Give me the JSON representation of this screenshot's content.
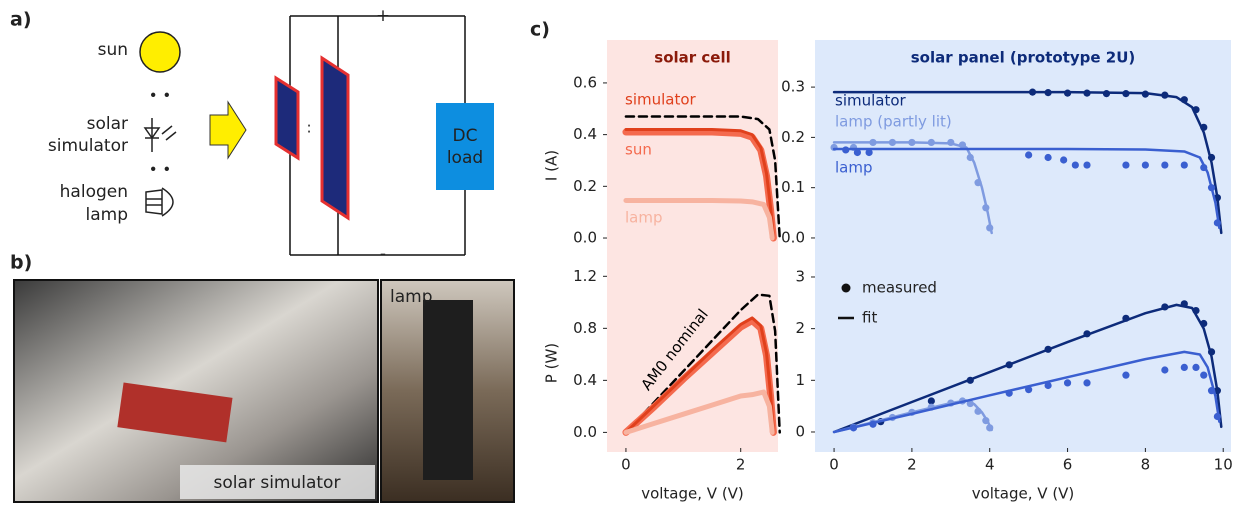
{
  "panel_a": {
    "label": "a)",
    "sources": [
      [
        "sun"
      ],
      [
        "solar",
        "simulator"
      ],
      [
        "halogen",
        "lamp"
      ]
    ],
    "plus": "+",
    "minus": "-",
    "load": [
      "DC",
      "load"
    ]
  },
  "panel_b": {
    "label": "b)",
    "photo_left": "solar simulator",
    "photo_right": "lamp"
  },
  "panel_c": {
    "label": "c)"
  },
  "chart_data": [
    {
      "type": "line",
      "title": "solar cell",
      "title_color": "#8b1a0a",
      "ylabel": "I (A)",
      "background": "#fde5e2",
      "xlim": [
        -0.33,
        2.65
      ],
      "ylim": [
        -0.027,
        0.65
      ],
      "yticks": [
        {
          "value": 0,
          "label": "0.0"
        },
        {
          "value": 0.2,
          "label": "0.2"
        },
        {
          "value": 0.4,
          "label": "0.4"
        },
        {
          "value": 0.6,
          "label": "0.6"
        }
      ],
      "series": [
        {
          "color": "#000000",
          "dash": true,
          "width": 2.5,
          "x": [
            0,
            1,
            2,
            2.3,
            2.5,
            2.6,
            2.68
          ],
          "values": [
            0.47,
            0.47,
            0.47,
            0.46,
            0.42,
            0.3,
            0
          ]
        },
        {
          "name": "sun",
          "color": "#f46a4e",
          "width": 7,
          "x": [
            0,
            0.5,
            1,
            1.5,
            2,
            2.2,
            2.35,
            2.45,
            2.52,
            2.57
          ],
          "values": [
            0.41,
            0.41,
            0.41,
            0.41,
            0.405,
            0.39,
            0.34,
            0.24,
            0.11,
            0
          ]
        },
        {
          "name": "simulator",
          "color": "#e0401c",
          "width": 3,
          "x": [
            0,
            0.5,
            1,
            1.5,
            2,
            2.2,
            2.35,
            2.45,
            2.52,
            2.57
          ],
          "values": [
            0.42,
            0.42,
            0.42,
            0.42,
            0.415,
            0.4,
            0.35,
            0.25,
            0.12,
            0
          ]
        },
        {
          "name": "lamp",
          "color": "#f7b3a0",
          "width": 5,
          "x": [
            0,
            0.5,
            1,
            1.5,
            2,
            2.2,
            2.4,
            2.5,
            2.55
          ],
          "values": [
            0.145,
            0.145,
            0.145,
            0.145,
            0.143,
            0.14,
            0.13,
            0.08,
            0
          ]
        }
      ]
    },
    {
      "type": "line",
      "xlabel": "voltage, V (V)",
      "ylabel": "P (W)",
      "background": "#fde5e2",
      "xlim": [
        -0.33,
        2.65
      ],
      "ylim": [
        -0.12,
        1.31
      ],
      "xticks": [
        0,
        2
      ],
      "yticks": [
        {
          "value": 0,
          "label": "0.0"
        },
        {
          "value": 0.4,
          "label": "0.4"
        },
        {
          "value": 0.8,
          "label": "0.8"
        },
        {
          "value": 1.2,
          "label": "1.2"
        }
      ],
      "series": [
        {
          "name": "AM0 nominal",
          "color": "#000000",
          "dash": true,
          "width": 2.5,
          "x": [
            0,
            1,
            2,
            2.3,
            2.5,
            2.6,
            2.68
          ],
          "values": [
            0,
            0.47,
            0.94,
            1.06,
            1.05,
            0.78,
            0
          ]
        },
        {
          "color": "#f46a4e",
          "width": 7,
          "x": [
            0,
            0.5,
            1,
            1.5,
            2,
            2.2,
            2.35,
            2.45,
            2.52,
            2.57
          ],
          "values": [
            0,
            0.2,
            0.41,
            0.61,
            0.81,
            0.86,
            0.8,
            0.59,
            0.28,
            0
          ]
        },
        {
          "color": "#e0401c",
          "width": 3,
          "x": [
            0,
            0.5,
            1,
            1.5,
            2,
            2.2,
            2.35,
            2.45,
            2.52,
            2.57
          ],
          "values": [
            0,
            0.21,
            0.42,
            0.63,
            0.83,
            0.88,
            0.82,
            0.61,
            0.3,
            0
          ]
        },
        {
          "color": "#f7b3a0",
          "width": 5,
          "x": [
            0,
            0.5,
            1,
            1.5,
            2,
            2.2,
            2.4,
            2.5,
            2.55
          ],
          "values": [
            0,
            0.07,
            0.14,
            0.21,
            0.28,
            0.29,
            0.31,
            0.2,
            0
          ]
        }
      ]
    },
    {
      "type": "line",
      "title": "solar panel (prototype 2U)",
      "title_color": "#0d2b7a",
      "background": "#dde9fb",
      "xlim": [
        -0.49,
        10.2
      ],
      "ylim": [
        -0.014,
        0.334
      ],
      "yticks": [
        {
          "value": 0,
          "label": "0.0"
        },
        {
          "value": 0.1,
          "label": "0.1"
        },
        {
          "value": 0.2,
          "label": "0.2"
        },
        {
          "value": 0.3,
          "label": "0.3"
        }
      ],
      "series": [
        {
          "name": "simulator",
          "color": "#0d2b7a",
          "width": 2.5,
          "x": [
            0,
            2,
            4,
            6,
            8,
            8.8,
            9.2,
            9.5,
            9.7,
            9.85,
            9.95
          ],
          "values": [
            0.29,
            0.29,
            0.29,
            0.29,
            0.288,
            0.28,
            0.26,
            0.21,
            0.15,
            0.08,
            0.01
          ],
          "points": {
            "x": [
              5.1,
              5.5,
              6,
              6.5,
              7,
              7.5,
              8,
              8.5,
              9,
              9.3,
              9.5,
              9.7,
              9.85
            ],
            "values": [
              0.29,
              0.289,
              0.288,
              0.288,
              0.287,
              0.287,
              0.286,
              0.284,
              0.275,
              0.255,
              0.22,
              0.16,
              0.08
            ]
          }
        },
        {
          "name": "lamp (partly lit)",
          "color": "#7f9be0",
          "width": 2.5,
          "x": [
            0,
            1,
            2,
            3,
            3.4,
            3.6,
            3.8,
            3.95,
            4.05
          ],
          "values": [
            0.19,
            0.19,
            0.19,
            0.188,
            0.18,
            0.15,
            0.1,
            0.05,
            0.01
          ],
          "points": {
            "x": [
              0,
              0.5,
              1,
              1.5,
              2,
              2.5,
              3,
              3.3,
              3.5,
              3.7,
              3.9,
              4
            ],
            "values": [
              0.18,
              0.18,
              0.19,
              0.19,
              0.19,
              0.19,
              0.19,
              0.185,
              0.16,
              0.11,
              0.06,
              0.02
            ]
          }
        },
        {
          "name": "lamp",
          "color": "#3a5fd0",
          "width": 2.5,
          "x": [
            0,
            2,
            4,
            6,
            8,
            9,
            9.4,
            9.6,
            9.8,
            9.9
          ],
          "values": [
            0.177,
            0.177,
            0.177,
            0.177,
            0.176,
            0.172,
            0.16,
            0.13,
            0.07,
            0.02
          ],
          "points": {
            "x": [
              0.3,
              0.6,
              0.9,
              5,
              5.5,
              5.9,
              6.2,
              6.5,
              7.5,
              8,
              8.5,
              9,
              9.5,
              9.7,
              9.85
            ],
            "values": [
              0.175,
              0.17,
              0.17,
              0.165,
              0.16,
              0.155,
              0.145,
              0.145,
              0.145,
              0.145,
              0.145,
              0.145,
              0.14,
              0.1,
              0.03
            ]
          }
        }
      ]
    },
    {
      "type": "line",
      "xlabel": "voltage, V (V)",
      "background": "#dde9fb",
      "legend": [
        "measured",
        "fit"
      ],
      "legend_corner": "upper left",
      "xlim": [
        -0.49,
        10.2
      ],
      "ylim": [
        -0.31,
        3.29
      ],
      "xticks": [
        0,
        2,
        4,
        6,
        8,
        10
      ],
      "yticks": [
        0,
        1,
        2,
        3
      ],
      "series": [
        {
          "color": "#0d2b7a",
          "width": 2.5,
          "x": [
            0,
            2,
            4,
            6,
            8,
            8.8,
            9.2,
            9.5,
            9.7,
            9.85,
            9.95
          ],
          "values": [
            0,
            0.58,
            1.16,
            1.74,
            2.3,
            2.46,
            2.4,
            2,
            1.46,
            0.79,
            0.1
          ],
          "points": {
            "x": [
              1.2,
              2.5,
              3.5,
              4.5,
              5.5,
              6.5,
              7.5,
              8.5,
              9,
              9.3,
              9.5,
              9.7,
              9.85
            ],
            "values": [
              0.2,
              0.6,
              1,
              1.3,
              1.6,
              1.9,
              2.2,
              2.42,
              2.48,
              2.35,
              2.1,
              1.55,
              0.8
            ]
          }
        },
        {
          "color": "#7f9be0",
          "width": 2.5,
          "x": [
            0,
            1,
            2,
            3,
            3.4,
            3.6,
            3.8,
            3.95,
            4.05
          ],
          "values": [
            0,
            0.19,
            0.38,
            0.56,
            0.61,
            0.54,
            0.38,
            0.2,
            0.04
          ],
          "points": {
            "x": [
              0.5,
              1,
              1.5,
              2,
              2.5,
              3,
              3.3,
              3.5,
              3.7,
              3.9,
              4
            ],
            "values": [
              0.09,
              0.18,
              0.28,
              0.38,
              0.48,
              0.56,
              0.6,
              0.55,
              0.4,
              0.22,
              0.08
            ]
          }
        },
        {
          "color": "#3a5fd0",
          "width": 2.5,
          "x": [
            0,
            2,
            4,
            6,
            8,
            9,
            9.4,
            9.6,
            9.8,
            9.9
          ],
          "values": [
            0,
            0.35,
            0.71,
            1.06,
            1.41,
            1.55,
            1.5,
            1.25,
            0.69,
            0.2
          ],
          "points": {
            "x": [
              0.5,
              1,
              4.5,
              5,
              5.5,
              6,
              6.5,
              7.5,
              8.5,
              9,
              9.3,
              9.5,
              9.7,
              9.85
            ],
            "values": [
              0.08,
              0.15,
              0.75,
              0.82,
              0.9,
              0.95,
              0.95,
              1.1,
              1.2,
              1.25,
              1.25,
              1.1,
              0.8,
              0.3
            ]
          }
        }
      ]
    }
  ]
}
